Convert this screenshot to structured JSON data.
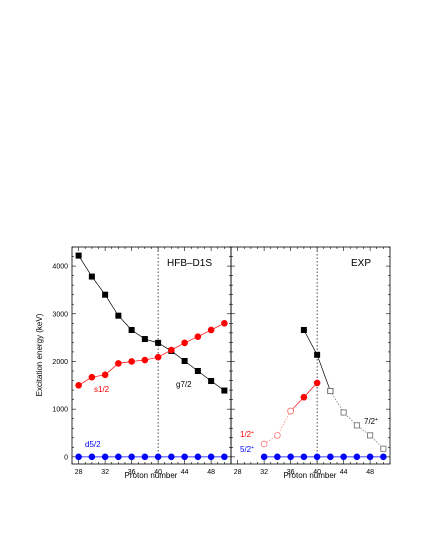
{
  "chart_data": [
    {
      "type": "line",
      "panel_label": "HFB–D1S",
      "xlabel": "Proton number",
      "ylabel": "Excitation energy (keV)",
      "xlim": [
        27,
        51
      ],
      "ylim": [
        -150,
        4400
      ],
      "x_ticks": [
        28,
        32,
        36,
        40,
        44,
        48
      ],
      "y_ticks": [
        0,
        1000,
        2000,
        3000,
        4000
      ],
      "reference_line_x": 40,
      "series": [
        {
          "name": "g7/2",
          "color": "#000000",
          "marker": "square",
          "filled": true,
          "x": [
            28,
            30,
            32,
            34,
            36,
            38,
            40,
            42,
            44,
            46,
            48,
            50
          ],
          "y": [
            4220,
            3780,
            3400,
            2960,
            2660,
            2470,
            2390,
            2220,
            2010,
            1800,
            1590,
            1390
          ]
        },
        {
          "name": "s1/2",
          "color": "#ff0000",
          "marker": "circle",
          "filled": true,
          "x": [
            28,
            30,
            32,
            34,
            36,
            38,
            40,
            42,
            44,
            46,
            48,
            50
          ],
          "y": [
            1500,
            1670,
            1720,
            1960,
            2000,
            2030,
            2090,
            2240,
            2390,
            2520,
            2660,
            2800
          ]
        },
        {
          "name": "d5/2",
          "color": "#0000ff",
          "marker": "circle",
          "filled": true,
          "x": [
            28,
            30,
            32,
            34,
            36,
            38,
            40,
            42,
            44,
            46,
            48,
            50
          ],
          "y": [
            0,
            0,
            0,
            0,
            0,
            0,
            0,
            0,
            0,
            0,
            0,
            0
          ]
        }
      ],
      "annotations": {
        "g7": "g7/2",
        "s1": "s1/2",
        "d5": "d5/2"
      }
    },
    {
      "type": "line",
      "panel_label": "EXP",
      "xlabel": "Proton number",
      "xlim": [
        27,
        51
      ],
      "ylim": [
        -150,
        4400
      ],
      "x_ticks": [
        28,
        32,
        36,
        40,
        44,
        48
      ],
      "reference_line_x": 40,
      "series": [
        {
          "name": "7/2+ (filled)",
          "color": "#000000",
          "marker": "square",
          "filled": true,
          "x": [
            38,
            40,
            42
          ],
          "y": [
            2660,
            2140,
            1380
          ]
        },
        {
          "name": "7/2+ (open)",
          "color": "#666666",
          "marker": "square",
          "filled": false,
          "x": [
            42,
            44,
            46,
            48,
            50
          ],
          "y": [
            1380,
            930,
            660,
            450,
            170
          ]
        },
        {
          "name": "1/2+ (filled)",
          "color": "#ff0000",
          "marker": "circle",
          "filled": true,
          "x": [
            36,
            38,
            40
          ],
          "y": [
            960,
            1250,
            1550
          ]
        },
        {
          "name": "1/2+ (open)",
          "color": "#ff7777",
          "marker": "circle",
          "filled": false,
          "x": [
            32,
            34,
            36
          ],
          "y": [
            270,
            450,
            960
          ]
        },
        {
          "name": "5/2+",
          "color": "#0000ff",
          "marker": "circle",
          "filled": true,
          "x": [
            32,
            34,
            36,
            38,
            40,
            42,
            44,
            46,
            48,
            50
          ],
          "y": [
            0,
            0,
            0,
            0,
            0,
            0,
            0,
            0,
            0,
            0
          ]
        }
      ],
      "annotations": {
        "seven": "7/2",
        "one": "1/2",
        "five": "5/2",
        "sup": "+"
      }
    }
  ]
}
